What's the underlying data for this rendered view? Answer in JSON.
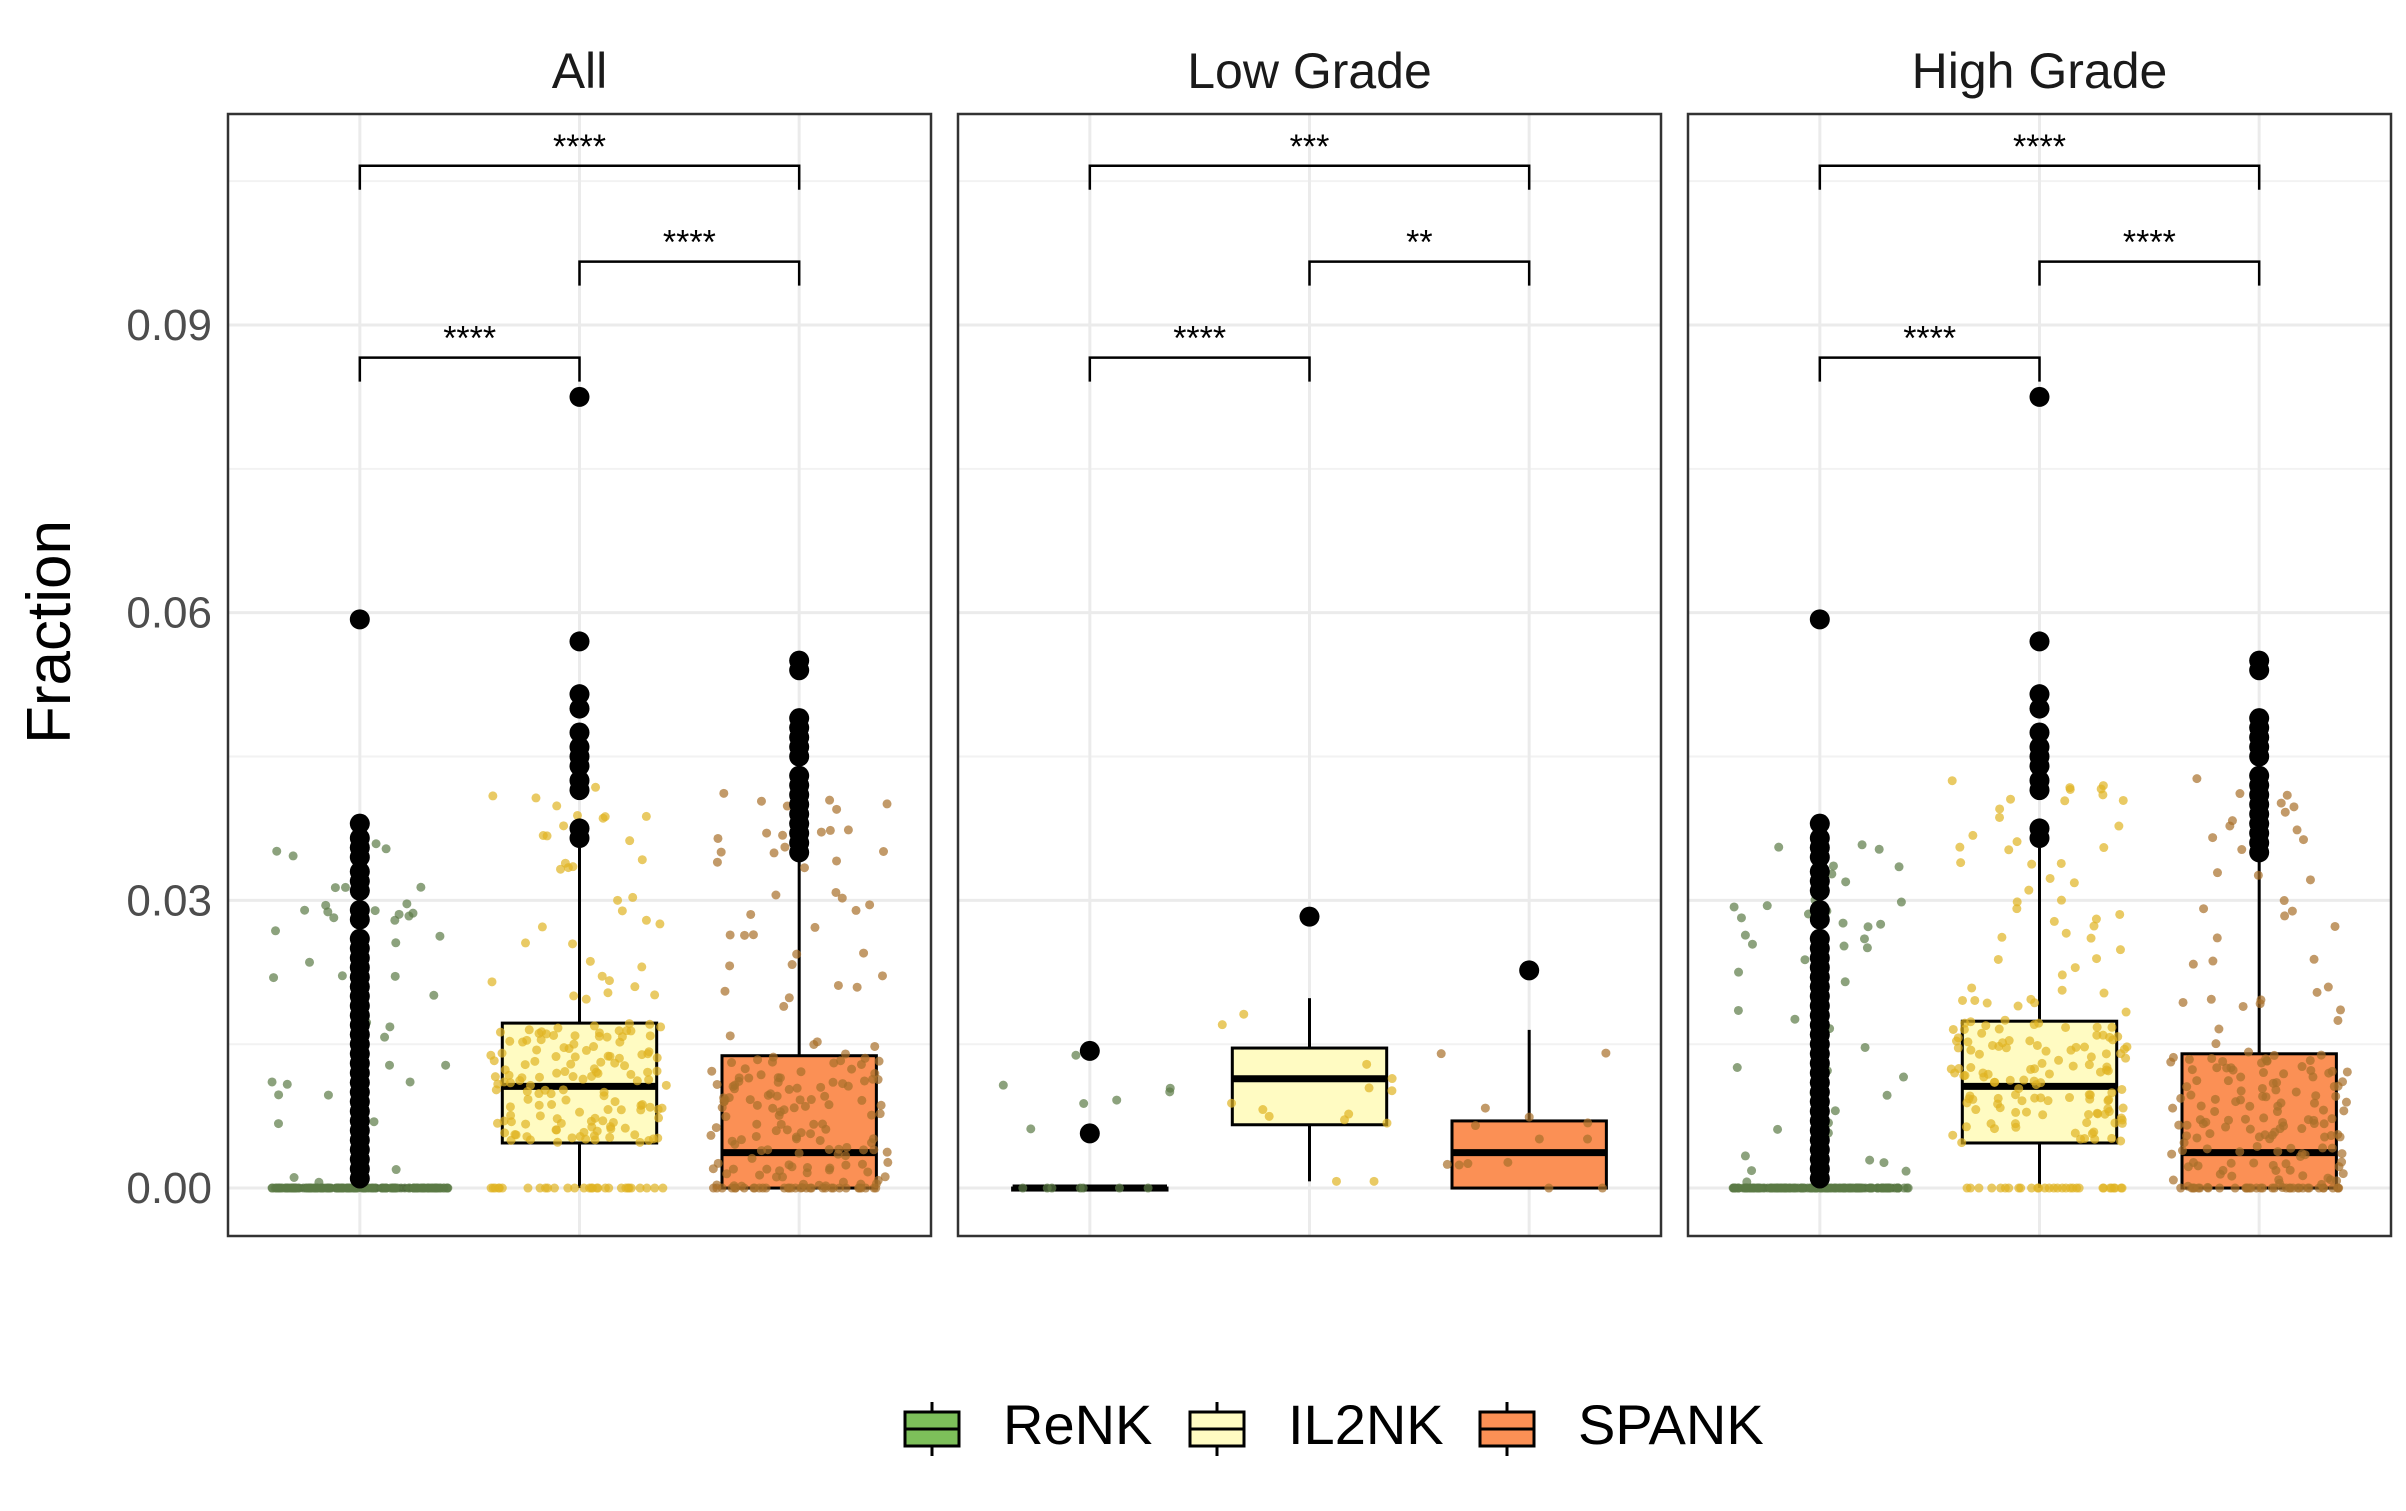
{
  "chart_data": {
    "type": "box",
    "ylabel": "Fraction",
    "xlabel": "",
    "ylim": [
      -0.005,
      0.112
    ],
    "yticks": [
      "0.00",
      "0.03",
      "0.06",
      "0.09"
    ],
    "ytick_values": [
      0,
      0.03,
      0.06,
      0.09
    ],
    "grid": true,
    "legend_position": "bottom",
    "categories": [
      "ReNK",
      "IL2NK",
      "SPANK"
    ],
    "colors": {
      "ReNK": {
        "fill": "#7dbf5a",
        "points": "#5b7a46"
      },
      "IL2NK": {
        "fill": "#fffbc2",
        "points": "#e0b422"
      },
      "SPANK": {
        "fill": "#fb9055",
        "points": "#a86f2a"
      }
    },
    "panels": [
      {
        "title": "All",
        "boxes": [
          {
            "group": "ReNK",
            "q1": 0,
            "median": 0,
            "q3": 0,
            "whisker_low": 0,
            "whisker_high": 0,
            "outliers": [
              0.0593,
              0.038,
              0.0365,
              0.0355,
              0.0345,
              0.033,
              0.032,
              0.031,
              0.029,
              0.028,
              0.026,
              0.025,
              0.024,
              0.023,
              0.022,
              0.021,
              0.02,
              0.019,
              0.018,
              0.017,
              0.016,
              0.015,
              0.014,
              0.013,
              0.012,
              0.011,
              0.01,
              0.009,
              0.008,
              0.007,
              0.006,
              0.005,
              0.004,
              0.003,
              0.002,
              0.001
            ]
          },
          {
            "group": "IL2NK",
            "q1": 0.0047,
            "median": 0.0106,
            "q3": 0.0172,
            "whisker_low": 0,
            "whisker_high": 0.0355,
            "outliers": [
              0.0825,
              0.057,
              0.0515,
              0.05,
              0.0475,
              0.046,
              0.045,
              0.044,
              0.0425,
              0.0415,
              0.0375,
              0.0365
            ]
          },
          {
            "group": "SPANK",
            "q1": 0,
            "median": 0.0037,
            "q3": 0.0138,
            "whisker_low": 0,
            "whisker_high": 0.0345,
            "outliers": [
              0.055,
              0.054,
              0.049,
              0.048,
              0.047,
              0.046,
              0.045,
              0.043,
              0.042,
              0.041,
              0.04,
              0.039,
              0.038,
              0.037,
              0.036,
              0.035
            ]
          }
        ],
        "comparisons": [
          {
            "groups": [
              "ReNK",
              "IL2NK"
            ],
            "label": "****",
            "level": 0.0866
          },
          {
            "groups": [
              "IL2NK",
              "SPANK"
            ],
            "label": "****",
            "level": 0.0966
          },
          {
            "groups": [
              "ReNK",
              "SPANK"
            ],
            "label": "****",
            "level": 0.1066
          }
        ]
      },
      {
        "title": "Low Grade",
        "boxes": [
          {
            "group": "ReNK",
            "q1": 0,
            "median": 0,
            "q3": 0,
            "whisker_low": 0,
            "whisker_high": 0,
            "outliers": [
              0.0143,
              0.0057
            ]
          },
          {
            "group": "IL2NK",
            "q1": 0.0066,
            "median": 0.0114,
            "q3": 0.0146,
            "whisker_low": 0.0007,
            "whisker_high": 0.0198,
            "outliers": [
              0.0283
            ]
          },
          {
            "group": "SPANK",
            "q1": 0,
            "median": 0.0037,
            "q3": 0.007,
            "whisker_low": 0,
            "whisker_high": 0.0165,
            "outliers": [
              0.0227
            ]
          }
        ],
        "comparisons": [
          {
            "groups": [
              "ReNK",
              "IL2NK"
            ],
            "label": "****",
            "level": 0.0866
          },
          {
            "groups": [
              "IL2NK",
              "SPANK"
            ],
            "label": "**",
            "level": 0.0966
          },
          {
            "groups": [
              "ReNK",
              "SPANK"
            ],
            "label": "***",
            "level": 0.1066
          }
        ]
      },
      {
        "title": "High Grade",
        "boxes": [
          {
            "group": "ReNK",
            "q1": 0,
            "median": 0,
            "q3": 0,
            "whisker_low": 0,
            "whisker_high": 0,
            "outliers": [
              0.0593,
              0.038,
              0.0365,
              0.0355,
              0.0345,
              0.033,
              0.032,
              0.031,
              0.029,
              0.028,
              0.026,
              0.025,
              0.024,
              0.023,
              0.022,
              0.021,
              0.02,
              0.019,
              0.018,
              0.017,
              0.016,
              0.015,
              0.014,
              0.013,
              0.012,
              0.011,
              0.01,
              0.009,
              0.008,
              0.007,
              0.006,
              0.005,
              0.004,
              0.003,
              0.002,
              0.001
            ]
          },
          {
            "group": "IL2NK",
            "q1": 0.0047,
            "median": 0.0106,
            "q3": 0.0174,
            "whisker_low": 0,
            "whisker_high": 0.0355,
            "outliers": [
              0.0825,
              0.057,
              0.0515,
              0.05,
              0.0475,
              0.046,
              0.045,
              0.044,
              0.0425,
              0.0415,
              0.0375,
              0.0365
            ]
          },
          {
            "group": "SPANK",
            "q1": 0,
            "median": 0.0037,
            "q3": 0.014,
            "whisker_low": 0,
            "whisker_high": 0.0345,
            "outliers": [
              0.055,
              0.054,
              0.049,
              0.048,
              0.047,
              0.046,
              0.045,
              0.043,
              0.042,
              0.041,
              0.04,
              0.039,
              0.038,
              0.037,
              0.036,
              0.035
            ]
          }
        ],
        "comparisons": [
          {
            "groups": [
              "ReNK",
              "IL2NK"
            ],
            "label": "****",
            "level": 0.0866
          },
          {
            "groups": [
              "IL2NK",
              "SPANK"
            ],
            "label": "****",
            "level": 0.0966
          },
          {
            "groups": [
              "ReNK",
              "SPANK"
            ],
            "label": "****",
            "level": 0.1066
          }
        ]
      }
    ]
  }
}
